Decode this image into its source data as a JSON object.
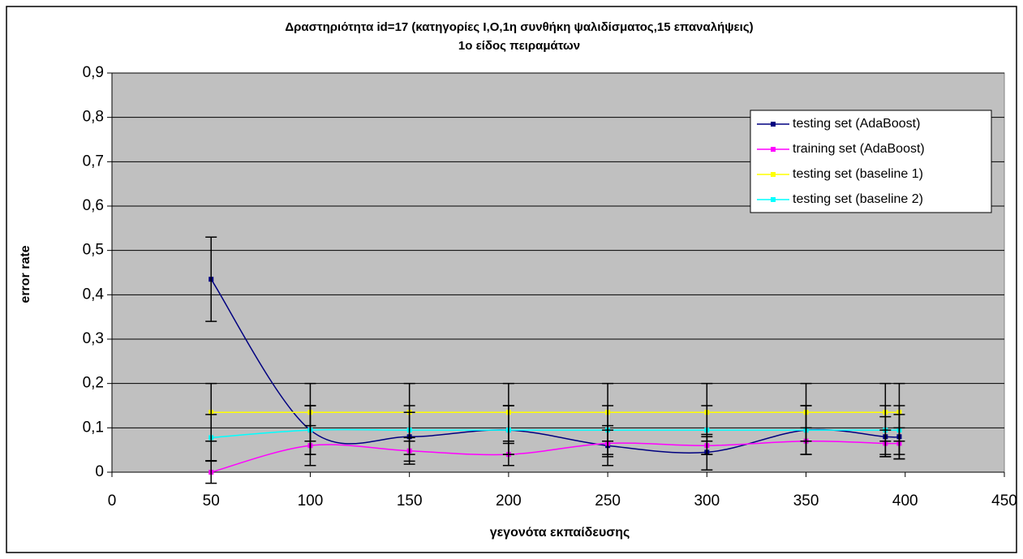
{
  "chart_data": {
    "type": "line",
    "title": "Δραστηριότητα id=17 (κατηγορίες I,O,1η συνθήκη ψαλιδίσματος,15 επαναλήψεις)",
    "subtitle": "1ο είδος πειραμάτων",
    "x_label": "γεγονότα εκπαίδευσης",
    "y_label": "error rate",
    "x": [
      50,
      100,
      150,
      200,
      250,
      300,
      350,
      390,
      397
    ],
    "series": [
      {
        "name": "testing set (AdaBoost)",
        "color": "#000080",
        "values": [
          0.435,
          0.095,
          0.08,
          0.095,
          0.06,
          0.045,
          0.095,
          0.08,
          0.08
        ],
        "errors": [
          0.095,
          0.055,
          0.055,
          0.055,
          0.045,
          0.04,
          0.055,
          0.045,
          0.05
        ]
      },
      {
        "name": "training set (AdaBoost)",
        "color": "#FF00FF",
        "values": [
          0,
          0.06,
          0.048,
          0.04,
          0.065,
          0.06,
          0.07,
          0.065,
          0.065
        ],
        "errors": [
          0.025,
          0.045,
          0.03,
          0.025,
          0.03,
          0.02,
          0.03,
          0.03,
          0.035
        ]
      },
      {
        "name": "testing set (baseline 1)",
        "color": "#FFFF00",
        "values": [
          0.135,
          0.135,
          0.135,
          0.135,
          0.135,
          0.135,
          0.135,
          0.135,
          0.135
        ],
        "errors": [
          0.065,
          0.065,
          0.065,
          0.065,
          0.065,
          0.065,
          0.065,
          0.065,
          0.065
        ]
      },
      {
        "name": "testing set (baseline 2)",
        "color": "#00FFFF",
        "values": [
          0.078,
          0.095,
          0.095,
          0.095,
          0.095,
          0.095,
          0.095,
          0.095,
          0.095
        ],
        "errors": [
          0.052,
          0.055,
          0.055,
          0.055,
          0.055,
          0.055,
          0.055,
          0.055,
          0.055
        ]
      }
    ],
    "xlim": [
      0,
      450
    ],
    "xticks": [
      0,
      50,
      100,
      150,
      200,
      250,
      300,
      350,
      400,
      450
    ],
    "ylim": [
      0,
      0.9
    ],
    "yticks": [
      0,
      {
        "value": 0.1,
        "label": "0,1"
      },
      {
        "value": 0.2,
        "label": "0,2"
      },
      {
        "value": 0.3,
        "label": "0,3"
      },
      {
        "value": 0.4,
        "label": "0,4"
      },
      {
        "value": 0.5,
        "label": "0,5"
      },
      {
        "value": 0.6,
        "label": "0,6"
      },
      {
        "value": 0.7,
        "label": "0,7"
      },
      {
        "value": 0.8,
        "label": "0,8"
      },
      {
        "value": 0.9,
        "label": "0,9"
      }
    ],
    "grid": true,
    "smooth": true,
    "legend": "upper right",
    "plot_background": "#C0C0C0"
  }
}
